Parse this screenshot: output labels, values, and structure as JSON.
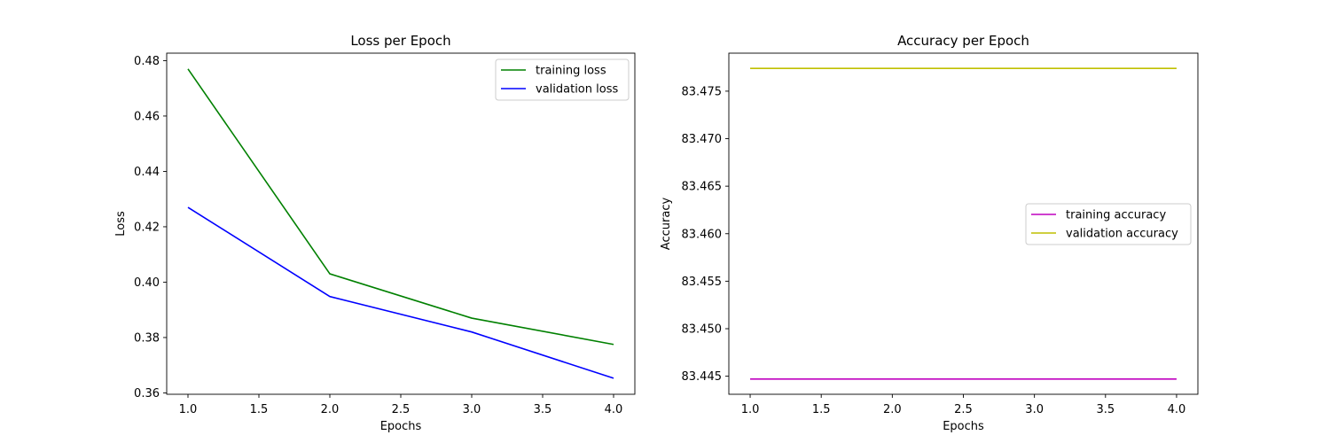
{
  "chart_data": [
    {
      "type": "line",
      "title": "Loss per Epoch",
      "xlabel": "Epochs",
      "ylabel": "Loss",
      "xlim": [
        0.85,
        4.15
      ],
      "ylim": [
        0.3595,
        0.4827
      ],
      "xticks": [
        1.0,
        1.5,
        2.0,
        2.5,
        3.0,
        3.5,
        4.0
      ],
      "xtick_labels": [
        "1.0",
        "1.5",
        "2.0",
        "2.5",
        "3.0",
        "3.5",
        "4.0"
      ],
      "yticks": [
        0.36,
        0.38,
        0.4,
        0.42,
        0.44,
        0.46,
        0.48
      ],
      "ytick_labels": [
        "0.36",
        "0.38",
        "0.40",
        "0.42",
        "0.44",
        "0.46",
        "0.48"
      ],
      "legend_position": "top-right",
      "x": [
        1,
        2,
        3,
        4
      ],
      "series": [
        {
          "name": "training loss",
          "color": "#008000",
          "values": [
            0.477,
            0.403,
            0.387,
            0.3775
          ]
        },
        {
          "name": "validation loss",
          "color": "#0000ff",
          "values": [
            0.427,
            0.3948,
            0.382,
            0.3653
          ]
        }
      ]
    },
    {
      "type": "line",
      "title": "Accuracy per Epoch",
      "xlabel": "Epochs",
      "ylabel": "Accuracy",
      "xlim": [
        0.85,
        4.15
      ],
      "ylim": [
        83.4431,
        83.479
      ],
      "xticks": [
        1.0,
        1.5,
        2.0,
        2.5,
        3.0,
        3.5,
        4.0
      ],
      "xtick_labels": [
        "1.0",
        "1.5",
        "2.0",
        "2.5",
        "3.0",
        "3.5",
        "4.0"
      ],
      "yticks": [
        83.445,
        83.45,
        83.455,
        83.46,
        83.465,
        83.47,
        83.475
      ],
      "ytick_labels": [
        "83.445",
        "83.450",
        "83.455",
        "83.460",
        "83.465",
        "83.470",
        "83.475"
      ],
      "legend_position": "center-right",
      "x": [
        1,
        2,
        3,
        4
      ],
      "series": [
        {
          "name": "training accuracy",
          "color": "#bf00bf",
          "values": [
            83.4447,
            83.4447,
            83.4447,
            83.4447
          ]
        },
        {
          "name": "validation accuracy",
          "color": "#bfbf00",
          "values": [
            83.4774,
            83.4774,
            83.4774,
            83.4774
          ]
        }
      ]
    }
  ]
}
